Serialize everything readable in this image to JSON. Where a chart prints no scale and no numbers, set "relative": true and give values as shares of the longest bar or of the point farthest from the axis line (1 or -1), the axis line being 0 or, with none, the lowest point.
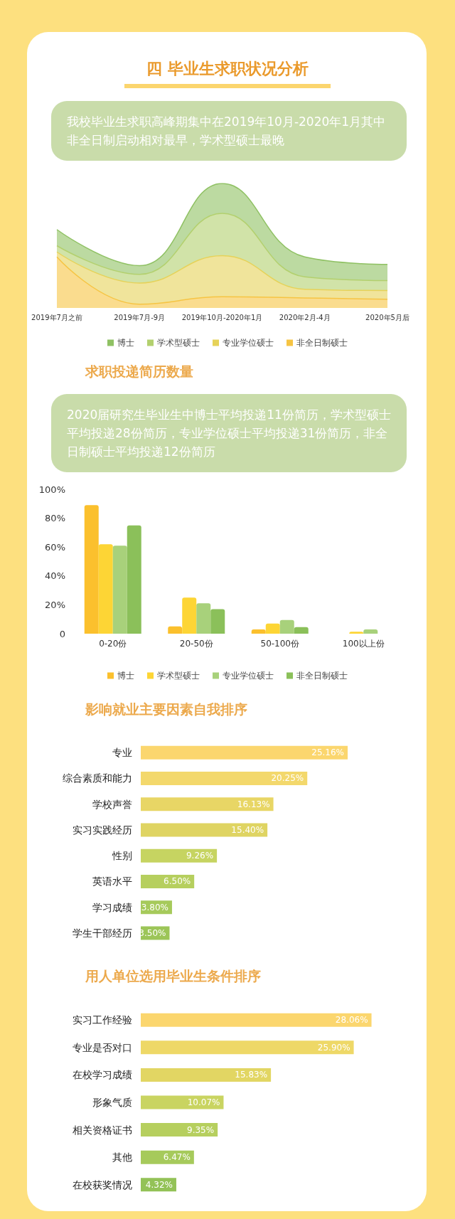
{
  "chart_data": [
    {
      "type": "area",
      "title": "四 毕业生求职状况分析",
      "subtitle": "我校毕业生求职高峰期集中在2019年10月-2020年1月其中非全日制启动相对最早，学术型硕士最晚",
      "relative": true,
      "stacked": true,
      "categories": [
        "2019年7月之前",
        "2019年7月-9月",
        "2019年10月-2020年1月",
        "2020年2月-4月",
        "2020年5月后"
      ],
      "legend": "bottom",
      "series": [
        {
          "name": "非全日制硕士",
          "color": "#f6c443",
          "values": [
            0.41,
            0.03,
            0.09,
            0.08,
            0.07
          ]
        },
        {
          "name": "专业学位硕士",
          "color": "#e6d259",
          "values": [
            0.04,
            0.17,
            0.33,
            0.07,
            0.07
          ]
        },
        {
          "name": "学术型硕士",
          "color": "#b3d06e",
          "values": [
            0.05,
            0.07,
            0.34,
            0.1,
            0.08
          ]
        },
        {
          "name": "博士",
          "color": "#8fc163",
          "values": [
            0.13,
            0.07,
            0.24,
            0.16,
            0.13
          ]
        }
      ]
    },
    {
      "type": "bar",
      "title": "求职投递简历数量",
      "subtitle": "2020届研究生毕业生中博士平均投递11份简历，学术型硕士平均投递28份简历，专业学位硕士平均投递31份简历，非全日制硕士平均投递12份简历",
      "categories": [
        "0-20份",
        "20-50份",
        "50-100份",
        "100以上份"
      ],
      "ylim": [
        0,
        100
      ],
      "yticks": [
        0,
        {
          "value": 20,
          "label": "20%"
        },
        {
          "value": 40,
          "label": "40%"
        },
        {
          "value": 60,
          "label": "60%"
        },
        {
          "value": 80,
          "label": "80%"
        },
        {
          "value": 100,
          "label": "100%"
        }
      ],
      "grid": false,
      "legend": "bottom",
      "series": [
        {
          "name": "博士",
          "color": "#fbc02d",
          "values": [
            89,
            5,
            3,
            null
          ]
        },
        {
          "name": "学术型硕士",
          "color": "#fdd535",
          "values": [
            62,
            25,
            7,
            1.3
          ]
        },
        {
          "name": "专业学位硕士",
          "color": "#a8d17b",
          "values": [
            61,
            21,
            9.5,
            3
          ]
        },
        {
          "name": "非全日制硕士",
          "color": "#8bc05a",
          "values": [
            75,
            17,
            4.5,
            null
          ]
        }
      ]
    },
    {
      "type": "bar",
      "orientation": "horizontal",
      "title": "影响就业主要因素自我排序",
      "categories": [
        "专业",
        "综合素质和能力",
        "学校声誉",
        "实习实践经历",
        "性别",
        "英语水平",
        "学习成绩",
        "学生干部经历"
      ],
      "values": [
        25.16,
        20.25,
        16.13,
        15.4,
        9.26,
        6.5,
        3.8,
        3.5
      ],
      "value_labels": [
        "25.16%",
        "20.25%",
        "16.13%",
        "15.40%",
        "9.26%",
        "6.50%",
        "3.80%",
        "3.50%"
      ],
      "colors": [
        "#fbd66e",
        "#f3d86c",
        "#e8d665",
        "#dfd462",
        "#c6d461",
        "#b6cf5e",
        "#a6ca5b",
        "#9cc558"
      ]
    },
    {
      "type": "bar",
      "orientation": "horizontal",
      "title": "用人单位选用毕业生条件排序",
      "categories": [
        "实习工作经验",
        "专业是否对口",
        "在校学习成绩",
        "形象气质",
        "相关资格证书",
        "其他",
        "在校获奖情况"
      ],
      "values": [
        28.06,
        25.9,
        15.83,
        10.07,
        9.35,
        6.47,
        4.32
      ],
      "value_labels": [
        "28.06%",
        "25.90%",
        "15.83%",
        "10.07%",
        "9.35%",
        "6.47%",
        "4.32%"
      ],
      "colors": [
        "#fbd66e",
        "#eed867",
        "#e2d663",
        "#c9d461",
        "#b6cf5e",
        "#a6ca5b",
        "#93c257"
      ]
    }
  ]
}
